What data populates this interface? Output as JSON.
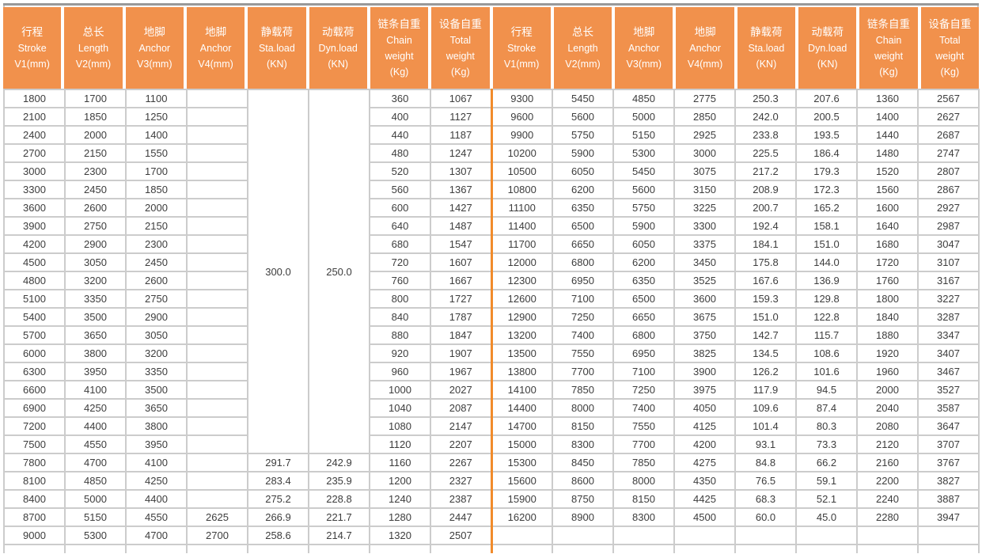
{
  "colors": {
    "header_bg": "#F1914C",
    "half_divider": "#F18B2B",
    "grid_line": "#CCCCCC",
    "top_rule": "#999999",
    "data_text": "#3D3D3D",
    "header_text": "#FFFFFF"
  },
  "table": {
    "headers": [
      {
        "key": "stroke",
        "zh": "行程",
        "en": "Stroke",
        "unit": "V1(mm)"
      },
      {
        "key": "length",
        "zh": "总长",
        "en": "Length",
        "unit": "V2(mm)"
      },
      {
        "key": "anchor-v3",
        "zh": "地脚",
        "en": "Anchor",
        "unit": "V3(mm)"
      },
      {
        "key": "anchor-v4",
        "zh": "地脚",
        "en": "Anchor",
        "unit": "V4(mm)"
      },
      {
        "key": "static-load",
        "zh": "静载荷",
        "en": "Sta.load",
        "unit": "(KN)"
      },
      {
        "key": "dynamic-load",
        "zh": "动载荷",
        "en": "Dyn.load",
        "unit": "(KN)"
      },
      {
        "key": "chain-weight",
        "zh": "链条自重",
        "en": "Chain",
        "en2": "weight",
        "unit": "(Kg)"
      },
      {
        "key": "total-weight",
        "zh": "设备自重",
        "en": "Total",
        "en2": "weight",
        "unit": "(Kg)"
      }
    ],
    "left": {
      "rows": [
        [
          "1800",
          "1700",
          "1100",
          "",
          {
            "v": "300.0",
            "rs": 20
          },
          {
            "v": "250.0",
            "rs": 20
          },
          "360",
          "1067"
        ],
        [
          "2100",
          "1850",
          "1250",
          "",
          null,
          null,
          "400",
          "1127"
        ],
        [
          "2400",
          "2000",
          "1400",
          "",
          null,
          null,
          "440",
          "1187"
        ],
        [
          "2700",
          "2150",
          "1550",
          "",
          null,
          null,
          "480",
          "1247"
        ],
        [
          "3000",
          "2300",
          "1700",
          "",
          null,
          null,
          "520",
          "1307"
        ],
        [
          "3300",
          "2450",
          "1850",
          "",
          null,
          null,
          "560",
          "1367"
        ],
        [
          "3600",
          "2600",
          "2000",
          "",
          null,
          null,
          "600",
          "1427"
        ],
        [
          "3900",
          "2750",
          "2150",
          "",
          null,
          null,
          "640",
          "1487"
        ],
        [
          "4200",
          "2900",
          "2300",
          "",
          null,
          null,
          "680",
          "1547"
        ],
        [
          "4500",
          "3050",
          "2450",
          "",
          null,
          null,
          "720",
          "1607"
        ],
        [
          "4800",
          "3200",
          "2600",
          "",
          null,
          null,
          "760",
          "1667"
        ],
        [
          "5100",
          "3350",
          "2750",
          "",
          null,
          null,
          "800",
          "1727"
        ],
        [
          "5400",
          "3500",
          "2900",
          "",
          null,
          null,
          "840",
          "1787"
        ],
        [
          "5700",
          "3650",
          "3050",
          "",
          null,
          null,
          "880",
          "1847"
        ],
        [
          "6000",
          "3800",
          "3200",
          "",
          null,
          null,
          "920",
          "1907"
        ],
        [
          "6300",
          "3950",
          "3350",
          "",
          null,
          null,
          "960",
          "1967"
        ],
        [
          "6600",
          "4100",
          "3500",
          "",
          null,
          null,
          "1000",
          "2027"
        ],
        [
          "6900",
          "4250",
          "3650",
          "",
          null,
          null,
          "1040",
          "2087"
        ],
        [
          "7200",
          "4400",
          "3800",
          "",
          null,
          null,
          "1080",
          "2147"
        ],
        [
          "7500",
          "4550",
          "3950",
          "",
          null,
          null,
          "1120",
          "2207"
        ],
        [
          "7800",
          "4700",
          "4100",
          "",
          "291.7",
          "242.9",
          "1160",
          "2267"
        ],
        [
          "8100",
          "4850",
          "4250",
          "",
          "283.4",
          "235.9",
          "1200",
          "2327"
        ],
        [
          "8400",
          "5000",
          "4400",
          "",
          "275.2",
          "228.8",
          "1240",
          "2387"
        ],
        [
          "8700",
          "5150",
          "4550",
          "2625",
          "266.9",
          "221.7",
          "1280",
          "2447"
        ],
        [
          "9000",
          "5300",
          "4700",
          "2700",
          "258.6",
          "214.7",
          "1320",
          "2507"
        ]
      ]
    },
    "right": {
      "rows": [
        [
          "9300",
          "5450",
          "4850",
          "2775",
          "250.3",
          "207.6",
          "1360",
          "2567"
        ],
        [
          "9600",
          "5600",
          "5000",
          "2850",
          "242.0",
          "200.5",
          "1400",
          "2627"
        ],
        [
          "9900",
          "5750",
          "5150",
          "2925",
          "233.8",
          "193.5",
          "1440",
          "2687"
        ],
        [
          "10200",
          "5900",
          "5300",
          "3000",
          "225.5",
          "186.4",
          "1480",
          "2747"
        ],
        [
          "10500",
          "6050",
          "5450",
          "3075",
          "217.2",
          "179.3",
          "1520",
          "2807"
        ],
        [
          "10800",
          "6200",
          "5600",
          "3150",
          "208.9",
          "172.3",
          "1560",
          "2867"
        ],
        [
          "11100",
          "6350",
          "5750",
          "3225",
          "200.7",
          "165.2",
          "1600",
          "2927"
        ],
        [
          "11400",
          "6500",
          "5900",
          "3300",
          "192.4",
          "158.1",
          "1640",
          "2987"
        ],
        [
          "11700",
          "6650",
          "6050",
          "3375",
          "184.1",
          "151.0",
          "1680",
          "3047"
        ],
        [
          "12000",
          "6800",
          "6200",
          "3450",
          "175.8",
          "144.0",
          "1720",
          "3107"
        ],
        [
          "12300",
          "6950",
          "6350",
          "3525",
          "167.6",
          "136.9",
          "1760",
          "3167"
        ],
        [
          "12600",
          "7100",
          "6500",
          "3600",
          "159.3",
          "129.8",
          "1800",
          "3227"
        ],
        [
          "12900",
          "7250",
          "6650",
          "3675",
          "151.0",
          "122.8",
          "1840",
          "3287"
        ],
        [
          "13200",
          "7400",
          "6800",
          "3750",
          "142.7",
          "115.7",
          "1880",
          "3347"
        ],
        [
          "13500",
          "7550",
          "6950",
          "3825",
          "134.5",
          "108.6",
          "1920",
          "3407"
        ],
        [
          "13800",
          "7700",
          "7100",
          "3900",
          "126.2",
          "101.6",
          "1960",
          "3467"
        ],
        [
          "14100",
          "7850",
          "7250",
          "3975",
          "117.9",
          "94.5",
          "2000",
          "3527"
        ],
        [
          "14400",
          "8000",
          "7400",
          "4050",
          "109.6",
          "87.4",
          "2040",
          "3587"
        ],
        [
          "14700",
          "8150",
          "7550",
          "4125",
          "101.4",
          "80.3",
          "2080",
          "3647"
        ],
        [
          "15000",
          "8300",
          "7700",
          "4200",
          "93.1",
          "73.3",
          "2120",
          "3707"
        ],
        [
          "15300",
          "8450",
          "7850",
          "4275",
          "84.8",
          "66.2",
          "2160",
          "3767"
        ],
        [
          "15600",
          "8600",
          "8000",
          "4350",
          "76.5",
          "59.1",
          "2200",
          "3827"
        ],
        [
          "15900",
          "8750",
          "8150",
          "4425",
          "68.3",
          "52.1",
          "2240",
          "3887"
        ],
        [
          "16200",
          "8900",
          "8300",
          "4500",
          "60.0",
          "45.0",
          "2280",
          "3947"
        ],
        [
          "",
          "",
          "",
          "",
          "",
          "",
          "",
          ""
        ]
      ]
    }
  }
}
